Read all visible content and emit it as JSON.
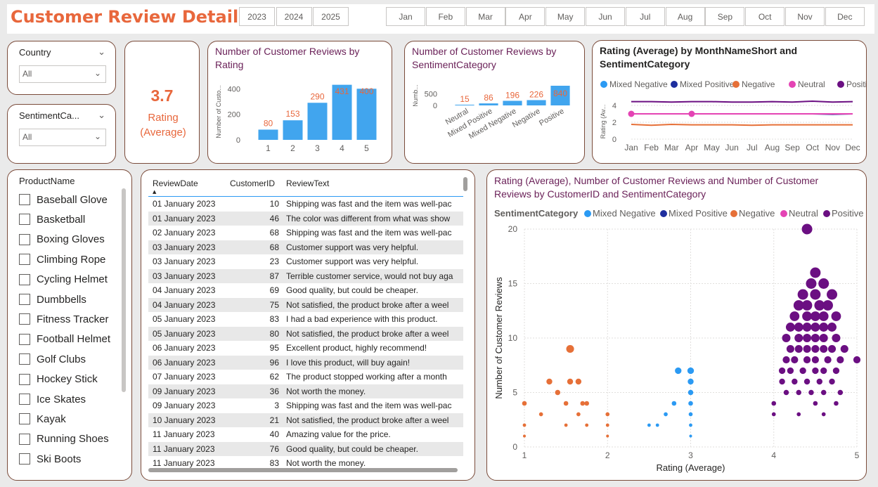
{
  "header": {
    "title": "Customer Review Details",
    "years": [
      "2023",
      "2024",
      "2025"
    ],
    "months": [
      "Jan",
      "Feb",
      "Mar",
      "Apr",
      "May",
      "Jun",
      "Jul",
      "Aug",
      "Sep",
      "Oct",
      "Nov",
      "Dec"
    ]
  },
  "filters": {
    "country": {
      "label": "Country",
      "value": "All"
    },
    "sentiment": {
      "label": "SentimentCa...",
      "value": "All"
    }
  },
  "kpi": {
    "value": "3.7",
    "label": "Rating (Average)"
  },
  "product_list": {
    "title": "ProductName",
    "items": [
      "Baseball Glove",
      "Basketball",
      "Boxing Gloves",
      "Climbing Rope",
      "Cycling Helmet",
      "Dumbbells",
      "Fitness Tracker",
      "Football Helmet",
      "Golf Clubs",
      "Hockey Stick",
      "Ice Skates",
      "Kayak",
      "Running Shoes",
      "Ski Boots"
    ]
  },
  "table": {
    "columns": [
      "ReviewDate",
      "CustomerID",
      "ReviewText"
    ],
    "rows": [
      [
        "01 January 2023",
        "10",
        "Shipping was fast and the item was well-pac"
      ],
      [
        "01 January 2023",
        "46",
        "The color was different from what was show"
      ],
      [
        "02 January 2023",
        "68",
        "Shipping was fast and the item was well-pac"
      ],
      [
        "03 January 2023",
        "68",
        "Customer support was very helpful."
      ],
      [
        "03 January 2023",
        "23",
        "Customer support was very helpful."
      ],
      [
        "03 January 2023",
        "87",
        "Terrible customer service, would not buy aga"
      ],
      [
        "04 January 2023",
        "69",
        "Good quality, but could be cheaper."
      ],
      [
        "04 January 2023",
        "75",
        "Not satisfied, the product broke after a weel"
      ],
      [
        "05 January 2023",
        "83",
        "I had a bad experience with this product."
      ],
      [
        "05 January 2023",
        "80",
        "Not satisfied, the product broke after a weel"
      ],
      [
        "06 January 2023",
        "95",
        "Excellent product, highly recommend!"
      ],
      [
        "06 January 2023",
        "96",
        "I love this product, will buy again!"
      ],
      [
        "07 January 2023",
        "62",
        "The product stopped working after a month"
      ],
      [
        "09 January 2023",
        "36",
        "Not worth the money."
      ],
      [
        "09 January 2023",
        "3",
        "Shipping was fast and the item was well-pac"
      ],
      [
        "10 January 2023",
        "21",
        "Not satisfied, the product broke after a weel"
      ],
      [
        "11 January 2023",
        "40",
        "Amazing value for the price."
      ],
      [
        "11 January 2023",
        "76",
        "Good quality, but could be cheaper."
      ],
      [
        "11 January 2023",
        "83",
        "Not worth the money."
      ]
    ]
  },
  "colors": {
    "accent": "#e8673c",
    "title_purple": "#6b2259",
    "bar_blue": "#41a5ee",
    "mixed_negative": "#2b9af3",
    "mixed_positive": "#1e2e9e",
    "negative": "#e67038",
    "neutral": "#e444b4",
    "positive": "#6b0f82"
  },
  "chart_data": [
    {
      "type": "bar",
      "title": "Number of Customer Reviews by Rating",
      "xlabel": "",
      "ylabel": "Number of Custo...",
      "categories": [
        "1",
        "2",
        "3",
        "4",
        "5"
      ],
      "values": [
        80,
        153,
        290,
        431,
        400
      ],
      "yticks": [
        "0",
        "200",
        "400"
      ],
      "ylim": [
        0,
        440
      ]
    },
    {
      "type": "bar",
      "title": "Number of Customer Reviews by SentimentCategory",
      "xlabel": "",
      "ylabel": "Numb...",
      "categories": [
        "Neutral",
        "Mixed Positive",
        "Mixed Negative",
        "Negative",
        "Positive"
      ],
      "values": [
        15,
        86,
        196,
        226,
        840
      ],
      "yticks": [
        "0",
        "500"
      ],
      "ylim": [
        0,
        900
      ]
    },
    {
      "type": "line",
      "title": "Rating (Average) by MonthNameShort and SentimentCategory",
      "xlabel": "",
      "ylabel": "Rating (Av...",
      "categories": [
        "Jan",
        "Feb",
        "Mar",
        "Apr",
        "May",
        "Jun",
        "Jul",
        "Aug",
        "Sep",
        "Oct",
        "Nov",
        "Dec"
      ],
      "yticks": [
        "0",
        "2",
        "4"
      ],
      "ylim": [
        0,
        5
      ],
      "legend": [
        "Mixed Negative",
        "Mixed Positive",
        "Negative",
        "Neutral",
        "Positive"
      ],
      "series": [
        {
          "name": "Positive",
          "values": [
            4.45,
            4.45,
            4.4,
            4.45,
            4.45,
            4.4,
            4.4,
            4.45,
            4.4,
            4.5,
            4.4,
            4.45
          ]
        },
        {
          "name": "Mixed Positive",
          "values": [
            3.0,
            3.0,
            3.0,
            3.0,
            3.0,
            3.0,
            3.0,
            3.0,
            3.0,
            3.0,
            2.95,
            3.0
          ]
        },
        {
          "name": "Mixed Negative",
          "values": [
            3.0,
            3.0,
            3.0,
            3.0,
            3.0,
            3.0,
            3.0,
            3.0,
            3.0,
            3.0,
            3.0,
            3.0
          ]
        },
        {
          "name": "Neutral",
          "values": [
            3.0,
            3.0,
            3.0,
            3.0,
            3.0,
            3.0,
            3.0,
            3.0,
            3.0,
            3.0,
            3.0,
            3.0
          ]
        },
        {
          "name": "Negative",
          "values": [
            1.75,
            1.65,
            1.75,
            1.7,
            1.7,
            1.7,
            1.65,
            1.7,
            1.7,
            1.7,
            1.7,
            1.7
          ]
        }
      ]
    },
    {
      "type": "scatter",
      "title": "Rating (Average), Number of Customer Reviews and Number of Customer Reviews by CustomerID and SentimentCategory",
      "xlabel": "Rating (Average)",
      "ylabel": "Number of Customer Reviews",
      "legend_title": "SentimentCategory",
      "legend": [
        "Mixed Negative",
        "Mixed Positive",
        "Negative",
        "Neutral",
        "Positive"
      ],
      "xlim": [
        1,
        5
      ],
      "ylim": [
        0,
        20
      ],
      "xticks": [
        "1",
        "2",
        "3",
        "4",
        "5"
      ],
      "yticks": [
        "0",
        "5",
        "10",
        "15",
        "20"
      ],
      "series": [
        {
          "name": "Negative",
          "points": [
            [
              1.55,
              9
            ],
            [
              1.3,
              6
            ],
            [
              1.55,
              6
            ],
            [
              1.65,
              6
            ],
            [
              1.4,
              5
            ],
            [
              1.0,
              4
            ],
            [
              1.5,
              4
            ],
            [
              1.75,
              4
            ],
            [
              1.2,
              3
            ],
            [
              1.65,
              3
            ],
            [
              1.7,
              4
            ],
            [
              1.0,
              2
            ],
            [
              1.5,
              2
            ],
            [
              1.75,
              2
            ],
            [
              2.0,
              3
            ],
            [
              2.0,
              2
            ],
            [
              1.0,
              1
            ],
            [
              2.0,
              1
            ]
          ]
        },
        {
          "name": "Mixed Negative",
          "points": [
            [
              2.85,
              7
            ],
            [
              3.0,
              7
            ],
            [
              3.0,
              6
            ],
            [
              3.0,
              5
            ],
            [
              2.8,
              4
            ],
            [
              3.0,
              4
            ],
            [
              2.7,
              3
            ],
            [
              3.0,
              3
            ],
            [
              2.5,
              2
            ],
            [
              2.6,
              2
            ],
            [
              3.0,
              2
            ],
            [
              3.0,
              1
            ]
          ]
        },
        {
          "name": "Positive",
          "points": [
            [
              4.4,
              20
            ],
            [
              4.5,
              16
            ],
            [
              4.45,
              15
            ],
            [
              4.6,
              15
            ],
            [
              4.35,
              14
            ],
            [
              4.5,
              14
            ],
            [
              4.7,
              14
            ],
            [
              4.3,
              13
            ],
            [
              4.4,
              13
            ],
            [
              4.55,
              13
            ],
            [
              4.65,
              13
            ],
            [
              4.25,
              12
            ],
            [
              4.4,
              12
            ],
            [
              4.5,
              12
            ],
            [
              4.6,
              12
            ],
            [
              4.75,
              12
            ],
            [
              4.2,
              11
            ],
            [
              4.3,
              11
            ],
            [
              4.4,
              11
            ],
            [
              4.5,
              11
            ],
            [
              4.6,
              11
            ],
            [
              4.7,
              11
            ],
            [
              4.15,
              10
            ],
            [
              4.3,
              10
            ],
            [
              4.4,
              10
            ],
            [
              4.5,
              10
            ],
            [
              4.6,
              10
            ],
            [
              4.75,
              10
            ],
            [
              4.2,
              9
            ],
            [
              4.3,
              9
            ],
            [
              4.4,
              9
            ],
            [
              4.5,
              9
            ],
            [
              4.6,
              9
            ],
            [
              4.7,
              9
            ],
            [
              4.85,
              9
            ],
            [
              4.15,
              8
            ],
            [
              4.25,
              8
            ],
            [
              4.4,
              8
            ],
            [
              4.5,
              8
            ],
            [
              4.65,
              8
            ],
            [
              4.8,
              8
            ],
            [
              5.0,
              8
            ],
            [
              4.1,
              7
            ],
            [
              4.2,
              7
            ],
            [
              4.35,
              7
            ],
            [
              4.5,
              7
            ],
            [
              4.6,
              7
            ],
            [
              4.75,
              7
            ],
            [
              4.1,
              6
            ],
            [
              4.25,
              6
            ],
            [
              4.4,
              6
            ],
            [
              4.55,
              6
            ],
            [
              4.7,
              6
            ],
            [
              4.15,
              5
            ],
            [
              4.3,
              5
            ],
            [
              4.45,
              5
            ],
            [
              4.6,
              5
            ],
            [
              4.8,
              5
            ],
            [
              4.0,
              4
            ],
            [
              4.5,
              4
            ],
            [
              4.75,
              4
            ],
            [
              4.0,
              3
            ],
            [
              4.3,
              3
            ],
            [
              4.6,
              3
            ]
          ]
        }
      ]
    }
  ]
}
